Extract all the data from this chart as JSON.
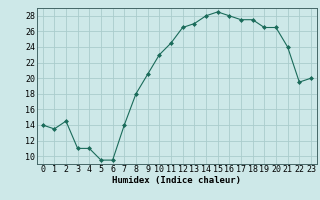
{
  "x": [
    0,
    1,
    2,
    3,
    4,
    5,
    6,
    7,
    8,
    9,
    10,
    11,
    12,
    13,
    14,
    15,
    16,
    17,
    18,
    19,
    20,
    21,
    22,
    23
  ],
  "y": [
    14,
    13.5,
    14.5,
    11,
    11,
    9.5,
    9.5,
    14,
    18,
    20.5,
    23,
    24.5,
    26.5,
    27,
    28,
    28.5,
    28,
    27.5,
    27.5,
    26.5,
    26.5,
    24,
    19.5,
    20
  ],
  "line_color": "#1a6b5a",
  "marker_color": "#1a6b5a",
  "bg_color": "#cde8e8",
  "grid_color": "#aacccc",
  "xlabel": "Humidex (Indice chaleur)",
  "xlim": [
    -0.5,
    23.5
  ],
  "ylim": [
    9,
    29
  ],
  "yticks": [
    10,
    12,
    14,
    16,
    18,
    20,
    22,
    24,
    26,
    28
  ],
  "xticks": [
    0,
    1,
    2,
    3,
    4,
    5,
    6,
    7,
    8,
    9,
    10,
    11,
    12,
    13,
    14,
    15,
    16,
    17,
    18,
    19,
    20,
    21,
    22,
    23
  ],
  "xlabel_fontsize": 6.5,
  "tick_fontsize": 6.0
}
